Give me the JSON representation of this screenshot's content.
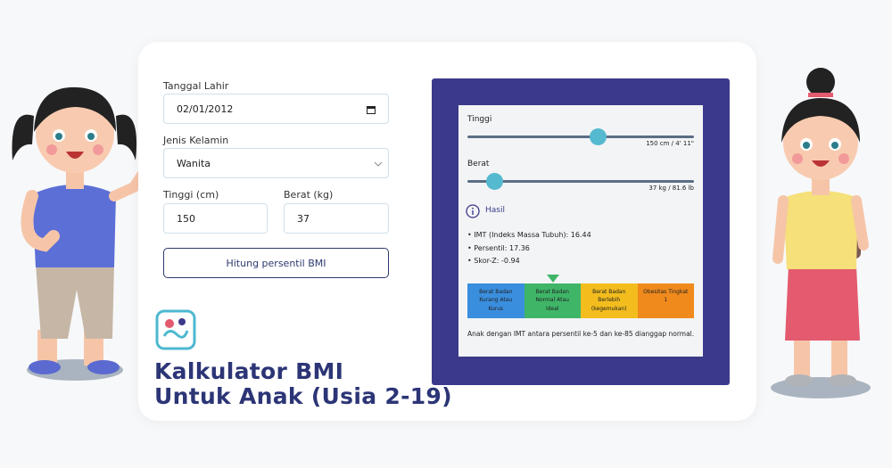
{
  "form": {
    "birth_date_label": "Tanggal Lahir",
    "birth_date": "02/01/2012",
    "gender_label": "Jenis Kelamin",
    "gender": "Wanita",
    "height_label": "Tinggi (cm)",
    "height": "150",
    "weight_label": "Berat (kg)",
    "weight": "37",
    "button": "Hitung persentil BMI"
  },
  "title": [
    "Kalkulator BMI",
    "Untuk Anak (Usia 2-19)"
  ],
  "result": {
    "height_label": "Tinggi",
    "height_value": "150 cm / 4' 11\"",
    "weight_label": "Berat",
    "weight_value": "37 kg / 81.6 lb",
    "section": "Hasil",
    "items": [
      "• IMT (Indeks Massa Tubuh): 16.44",
      "• Persentil: 17.36",
      "• Skor-Z: -0.94"
    ],
    "categories": [
      {
        "label": "Berat Badan Kurang Atau Kurus",
        "color": "#3a8ede"
      },
      {
        "label": "Berat Badan Normal Atau Ideal",
        "color": "#3fb568"
      },
      {
        "label": "Berat Badan Berlebih (kegemukan)",
        "color": "#f3bd1e"
      },
      {
        "label": "Obesitas Tingkat 1",
        "color": "#f08a1c"
      }
    ],
    "note": "Anak dengan IMT antara persentil ke-5 dan ke-85 dianggap normal."
  }
}
